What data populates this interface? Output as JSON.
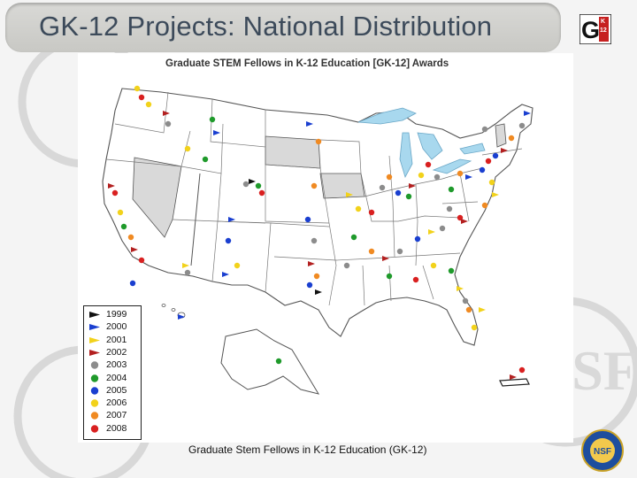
{
  "slide": {
    "title": "GK-12 Projects: National Distribution",
    "caption": "Graduate Stem Fellows in K-12 Education (GK-12)"
  },
  "logo": {
    "text": "G K-12",
    "icon": "gk12-logo-icon"
  },
  "watermark": {
    "text": "NSF",
    "icon": "nsf-watermark-icon"
  },
  "seal": {
    "text": "NSF",
    "icon": "nsf-seal-icon"
  },
  "map": {
    "heading": "Graduate STEM Fellows in K-12 Education [GK-12] Awards",
    "colors": {
      "land": "#ffffff",
      "border": "#555555",
      "water": "#a8d8ee",
      "no_award_state": "#d9d9d9"
    }
  },
  "legend": {
    "items": [
      {
        "year": "1999",
        "shape": "flag",
        "color": "#111111"
      },
      {
        "year": "2000",
        "shape": "flag",
        "color": "#1a3fd0"
      },
      {
        "year": "2001",
        "shape": "flag",
        "color": "#f2d21b"
      },
      {
        "year": "2002",
        "shape": "flag",
        "color": "#b32020"
      },
      {
        "year": "2003",
        "shape": "dot",
        "color": "#8c8c8c"
      },
      {
        "year": "2004",
        "shape": "dot",
        "color": "#1f9a2b"
      },
      {
        "year": "2005",
        "shape": "dot",
        "color": "#1a3fd0"
      },
      {
        "year": "2006",
        "shape": "dot",
        "color": "#f2d21b"
      },
      {
        "year": "2007",
        "shape": "dot",
        "color": "#f08a22"
      },
      {
        "year": "2008",
        "shape": "dot",
        "color": "#d92020"
      }
    ]
  }
}
